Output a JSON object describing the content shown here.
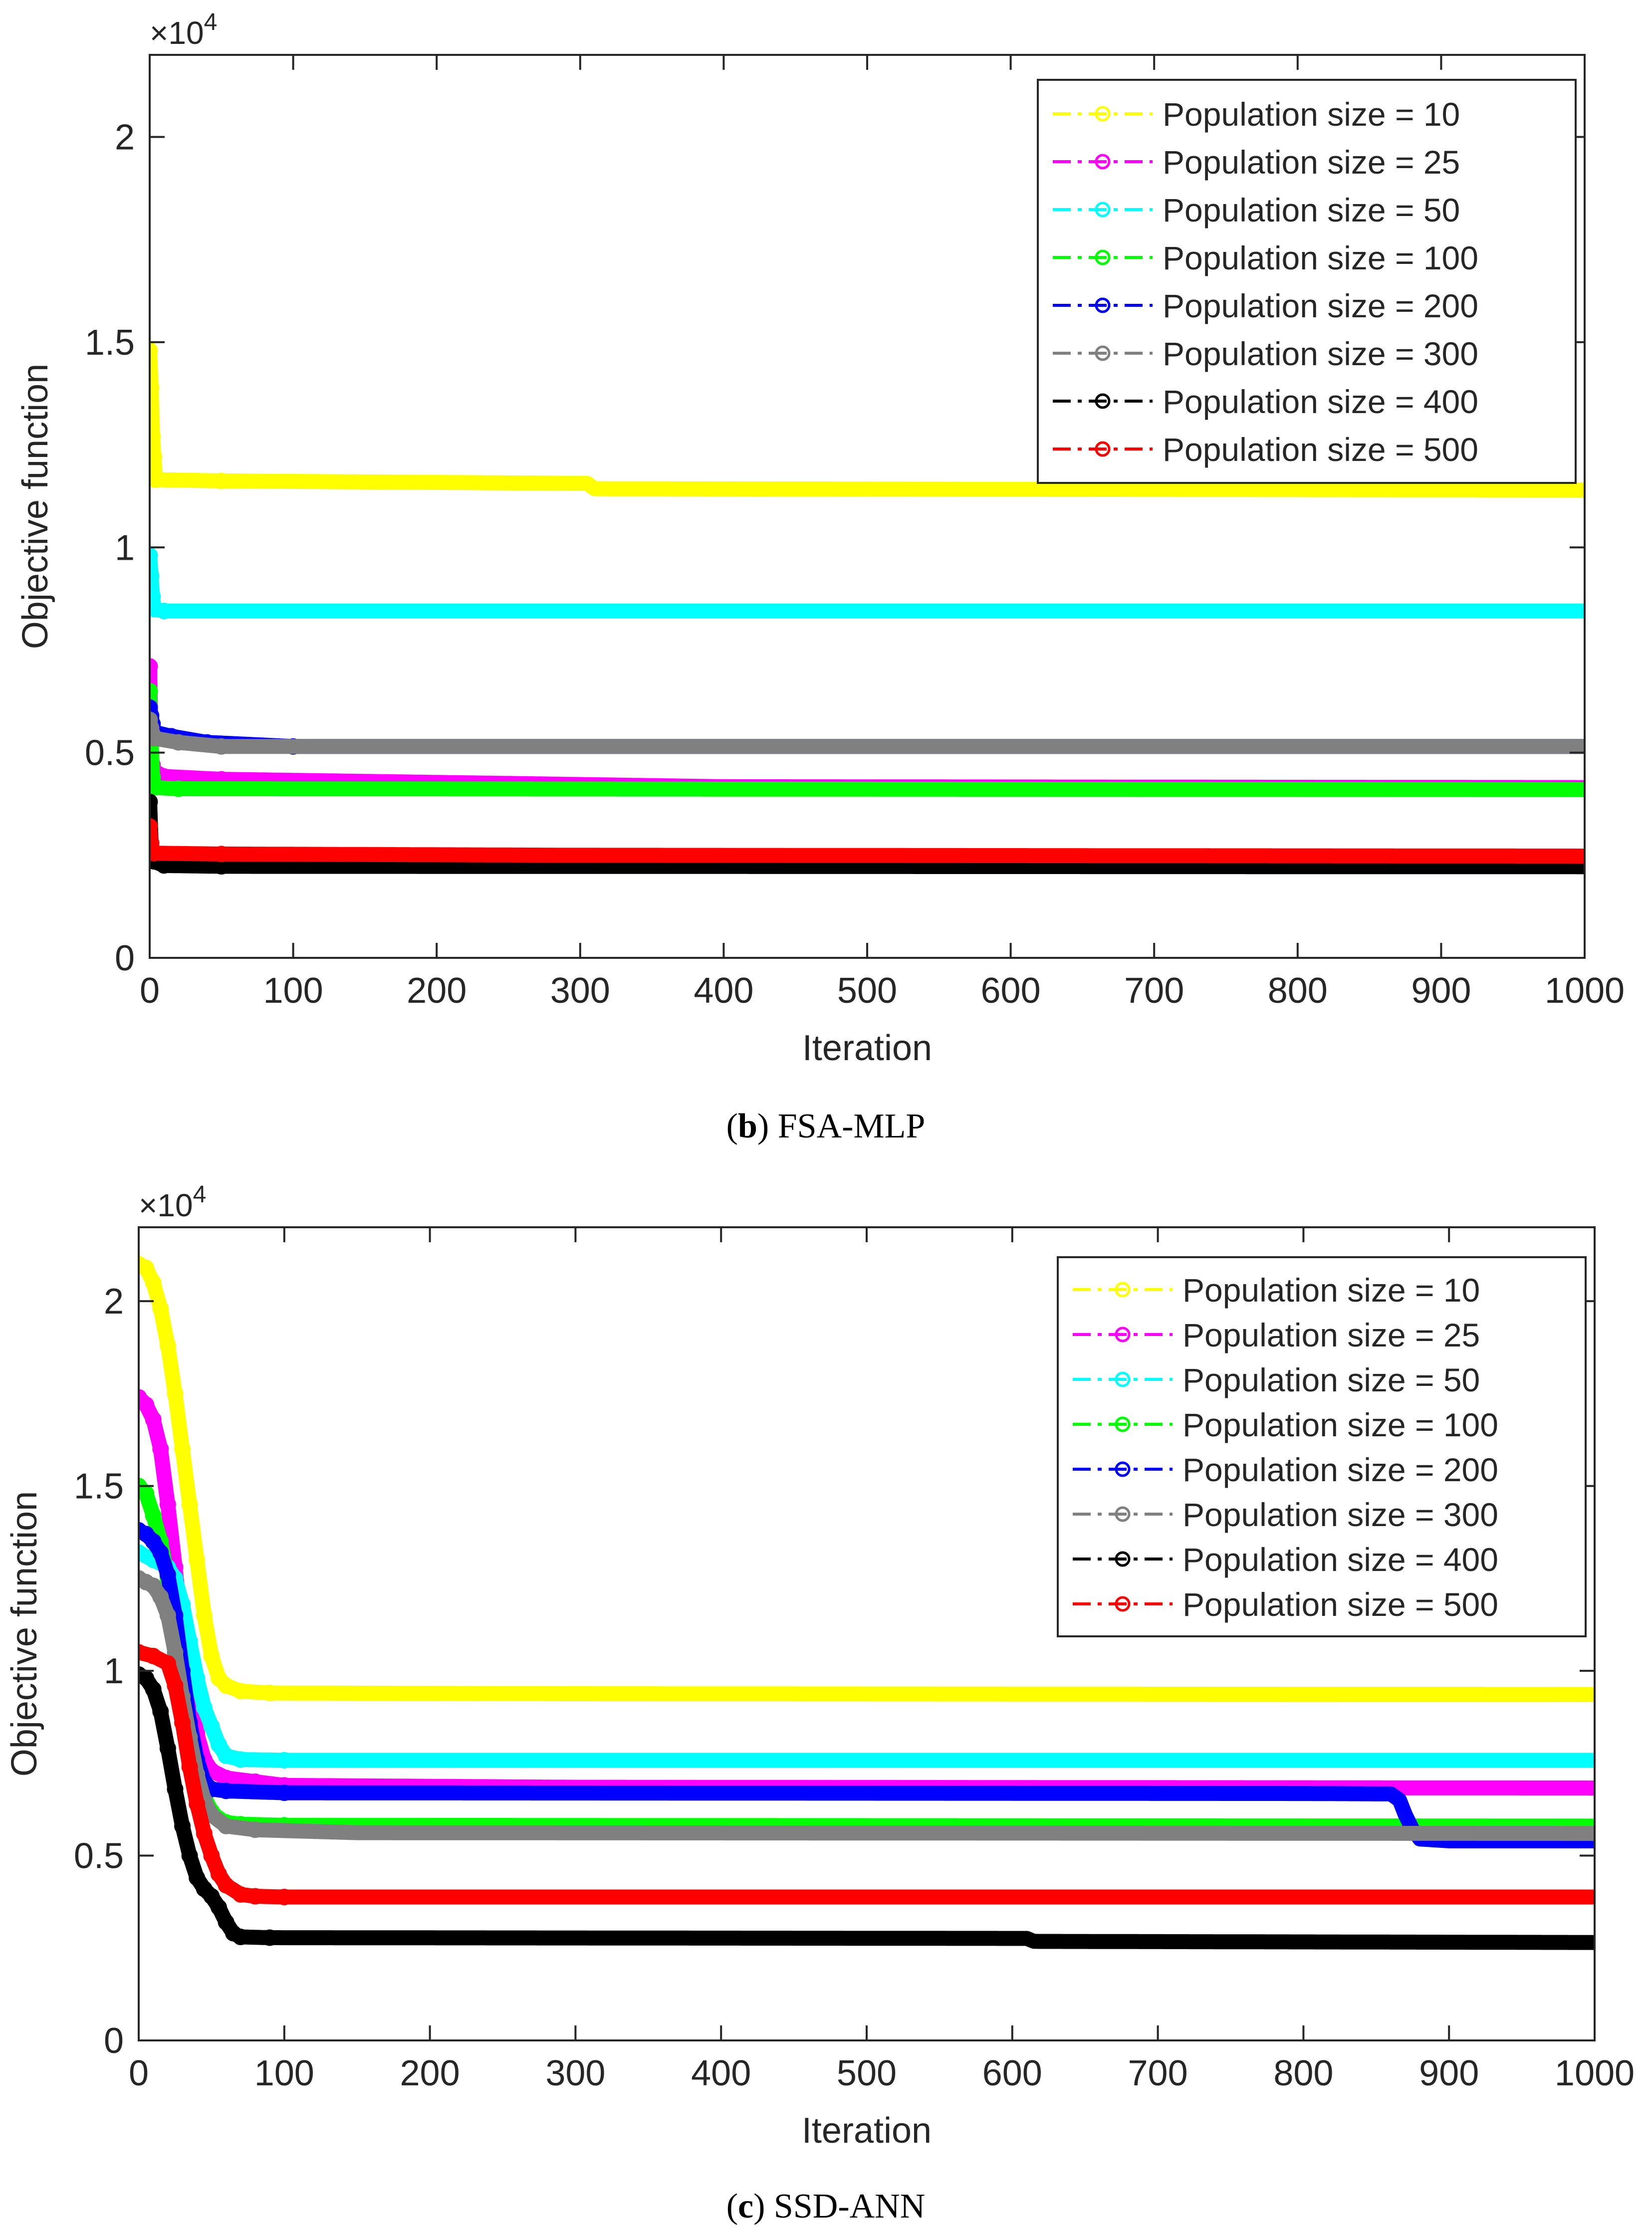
{
  "chart_data": [
    {
      "type": "line",
      "panel": "b",
      "caption_label": "b",
      "caption_text": " FSA-MLP",
      "exponent_label": "×10",
      "exponent_power": "4",
      "xlabel": "Iteration",
      "ylabel": "Objective function",
      "xlim": [
        0,
        1000
      ],
      "ylim": [
        0,
        22000
      ],
      "xticks": [
        0,
        100,
        200,
        300,
        400,
        500,
        600,
        700,
        800,
        900,
        1000
      ],
      "yticks": [
        0,
        5000,
        10000,
        15000,
        20000
      ],
      "ytick_labels": [
        "0",
        "0.5",
        "1",
        "1.5",
        "2"
      ],
      "grid": false,
      "legend_position": "top-right",
      "series": [
        {
          "name": "Population size = 10",
          "color": "#FFFF00",
          "points": [
            [
              0,
              14800
            ],
            [
              1,
              13900
            ],
            [
              2,
              12700
            ],
            [
              3,
              12200
            ],
            [
              4,
              11650
            ],
            [
              50,
              11620
            ],
            [
              300,
              11560
            ],
            [
              305,
              11560
            ],
            [
              310,
              11430
            ],
            [
              500,
              11420
            ],
            [
              1000,
              11400
            ]
          ]
        },
        {
          "name": "Population size = 25",
          "color": "#FF00FF",
          "points": [
            [
              0,
              7100
            ],
            [
              1,
              5000
            ],
            [
              2,
              4700
            ],
            [
              3,
              4550
            ],
            [
              10,
              4420
            ],
            [
              50,
              4350
            ],
            [
              250,
              4250
            ],
            [
              400,
              4170
            ],
            [
              1000,
              4150
            ]
          ]
        },
        {
          "name": "Population size = 50",
          "color": "#00FFFF",
          "points": [
            [
              0,
              9800
            ],
            [
              1,
              9300
            ],
            [
              2,
              8800
            ],
            [
              3,
              8500
            ],
            [
              10,
              8450
            ],
            [
              1000,
              8450
            ]
          ]
        },
        {
          "name": "Population size = 100",
          "color": "#00FF00",
          "points": [
            [
              0,
              6500
            ],
            [
              1,
              5300
            ],
            [
              2,
              4400
            ],
            [
              3,
              4150
            ],
            [
              20,
              4120
            ],
            [
              1000,
              4100
            ]
          ]
        },
        {
          "name": "Population size = 200",
          "color": "#0000FF",
          "points": [
            [
              0,
              6100
            ],
            [
              1,
              5900
            ],
            [
              2,
              5700
            ],
            [
              3,
              5500
            ],
            [
              15,
              5400
            ],
            [
              40,
              5250
            ],
            [
              100,
              5150
            ],
            [
              1000,
              5150
            ]
          ]
        },
        {
          "name": "Population size = 300",
          "color": "#808080",
          "points": [
            [
              0,
              5800
            ],
            [
              1,
              5600
            ],
            [
              2,
              5450
            ],
            [
              3,
              5350
            ],
            [
              20,
              5250
            ],
            [
              50,
              5150
            ],
            [
              1000,
              5150
            ]
          ]
        },
        {
          "name": "Population size = 400",
          "color": "#000000",
          "points": [
            [
              0,
              3800
            ],
            [
              1,
              2800
            ],
            [
              2,
              2500
            ],
            [
              3,
              2350
            ],
            [
              10,
              2250
            ],
            [
              50,
              2230
            ],
            [
              1000,
              2220
            ]
          ]
        },
        {
          "name": "Population size = 500",
          "color": "#FF0000",
          "points": [
            [
              0,
              3200
            ],
            [
              1,
              2800
            ],
            [
              2,
              2600
            ],
            [
              3,
              2550
            ],
            [
              50,
              2530
            ],
            [
              300,
              2500
            ],
            [
              1000,
              2480
            ]
          ]
        }
      ]
    },
    {
      "type": "line",
      "panel": "c",
      "caption_label": "c",
      "caption_text": " SSD-ANN",
      "exponent_label": "×10",
      "exponent_power": "4",
      "xlabel": "Iteration",
      "ylabel": "Objective function",
      "xlim": [
        0,
        1000
      ],
      "ylim": [
        0,
        22000
      ],
      "xticks": [
        0,
        100,
        200,
        300,
        400,
        500,
        600,
        700,
        800,
        900,
        1000
      ],
      "yticks": [
        0,
        5000,
        10000,
        15000,
        20000
      ],
      "ytick_labels": [
        "0",
        "0.5",
        "1",
        "1.5",
        "2"
      ],
      "grid": false,
      "legend_position": "top-right",
      "series": [
        {
          "name": "Population size = 10",
          "color": "#FFFF00",
          "points": [
            [
              0,
              21000
            ],
            [
              5,
              20900
            ],
            [
              10,
              20500
            ],
            [
              15,
              19800
            ],
            [
              20,
              18800
            ],
            [
              25,
              17500
            ],
            [
              30,
              16000
            ],
            [
              35,
              14500
            ],
            [
              40,
              13000
            ],
            [
              45,
              11500
            ],
            [
              50,
              10400
            ],
            [
              55,
              9800
            ],
            [
              60,
              9600
            ],
            [
              70,
              9450
            ],
            [
              90,
              9400
            ],
            [
              300,
              9380
            ],
            [
              1000,
              9360
            ]
          ]
        },
        {
          "name": "Population size = 25",
          "color": "#FF00FF",
          "points": [
            [
              0,
              17400
            ],
            [
              5,
              17200
            ],
            [
              10,
              16800
            ],
            [
              15,
              16000
            ],
            [
              20,
              14500
            ],
            [
              25,
              12800
            ],
            [
              30,
              11000
            ],
            [
              35,
              9500
            ],
            [
              40,
              8300
            ],
            [
              45,
              7600
            ],
            [
              50,
              7300
            ],
            [
              60,
              7100
            ],
            [
              80,
              7000
            ],
            [
              100,
              6900
            ],
            [
              300,
              6850
            ],
            [
              1000,
              6830
            ]
          ]
        },
        {
          "name": "Population size = 50",
          "color": "#00FFFF",
          "points": [
            [
              0,
              13200
            ],
            [
              10,
              13000
            ],
            [
              20,
              12800
            ],
            [
              25,
              12500
            ],
            [
              30,
              11800
            ],
            [
              35,
              10800
            ],
            [
              40,
              9800
            ],
            [
              45,
              9000
            ],
            [
              50,
              8500
            ],
            [
              55,
              8000
            ],
            [
              60,
              7700
            ],
            [
              70,
              7600
            ],
            [
              100,
              7580
            ],
            [
              1000,
              7580
            ]
          ]
        },
        {
          "name": "Population size = 100",
          "color": "#00FF00",
          "points": [
            [
              0,
              15000
            ],
            [
              5,
              14800
            ],
            [
              10,
              14200
            ],
            [
              15,
              13500
            ],
            [
              20,
              12500
            ],
            [
              25,
              11200
            ],
            [
              30,
              9800
            ],
            [
              35,
              8400
            ],
            [
              40,
              7300
            ],
            [
              45,
              6600
            ],
            [
              50,
              6200
            ],
            [
              55,
              6000
            ],
            [
              60,
              5900
            ],
            [
              70,
              5850
            ],
            [
              100,
              5820
            ],
            [
              1000,
              5800
            ]
          ]
        },
        {
          "name": "Population size = 200",
          "color": "#0000FF",
          "points": [
            [
              0,
              13800
            ],
            [
              5,
              13700
            ],
            [
              10,
              13500
            ],
            [
              15,
              13200
            ],
            [
              20,
              12600
            ],
            [
              25,
              11500
            ],
            [
              30,
              10000
            ],
            [
              35,
              8600
            ],
            [
              40,
              7600
            ],
            [
              45,
              7000
            ],
            [
              50,
              6800
            ],
            [
              60,
              6750
            ],
            [
              100,
              6700
            ],
            [
              800,
              6680
            ],
            [
              860,
              6670
            ],
            [
              866,
              6500
            ],
            [
              870,
              6100
            ],
            [
              875,
              5700
            ],
            [
              880,
              5450
            ],
            [
              900,
              5400
            ],
            [
              1000,
              5400
            ]
          ]
        },
        {
          "name": "Population size = 300",
          "color": "#808080",
          "points": [
            [
              0,
              12500
            ],
            [
              5,
              12400
            ],
            [
              10,
              12300
            ],
            [
              15,
              12000
            ],
            [
              20,
              11500
            ],
            [
              25,
              10500
            ],
            [
              30,
              9300
            ],
            [
              35,
              8200
            ],
            [
              40,
              7200
            ],
            [
              45,
              6500
            ],
            [
              50,
              6100
            ],
            [
              60,
              5800
            ],
            [
              80,
              5700
            ],
            [
              150,
              5620
            ],
            [
              1000,
              5600
            ]
          ]
        },
        {
          "name": "Population size = 400",
          "color": "#000000",
          "points": [
            [
              0,
              9900
            ],
            [
              5,
              9800
            ],
            [
              10,
              9500
            ],
            [
              15,
              8900
            ],
            [
              20,
              7900
            ],
            [
              25,
              6800
            ],
            [
              30,
              5800
            ],
            [
              35,
              5000
            ],
            [
              40,
              4400
            ],
            [
              45,
              4100
            ],
            [
              50,
              3900
            ],
            [
              55,
              3600
            ],
            [
              60,
              3200
            ],
            [
              65,
              2900
            ],
            [
              70,
              2800
            ],
            [
              90,
              2780
            ],
            [
              610,
              2760
            ],
            [
              615,
              2680
            ],
            [
              1000,
              2650
            ]
          ]
        },
        {
          "name": "Population size = 500",
          "color": "#FF0000",
          "points": [
            [
              0,
              10500
            ],
            [
              10,
              10400
            ],
            [
              20,
              10200
            ],
            [
              25,
              9600
            ],
            [
              30,
              8600
            ],
            [
              35,
              7400
            ],
            [
              40,
              6400
            ],
            [
              45,
              5600
            ],
            [
              50,
              5000
            ],
            [
              55,
              4500
            ],
            [
              60,
              4200
            ],
            [
              70,
              3950
            ],
            [
              80,
              3900
            ],
            [
              100,
              3880
            ],
            [
              1000,
              3880
            ]
          ]
        }
      ]
    }
  ]
}
